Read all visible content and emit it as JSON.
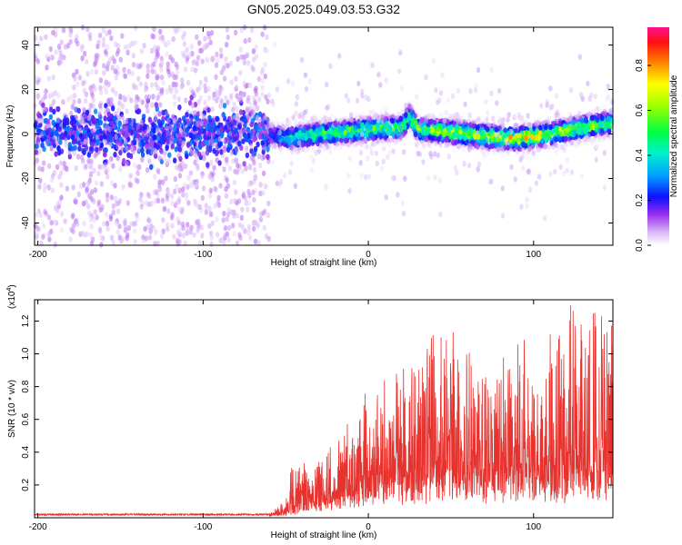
{
  "title": "GN05.2025.049.03.53.G32",
  "chart_data": [
    {
      "type": "heatmap",
      "xlabel": "Height of straight line (km)",
      "ylabel": "Frequency (Hz)",
      "xlim": [
        -202,
        148
      ],
      "ylim": [
        -50,
        48
      ],
      "x_ticks": [
        -200,
        -100,
        0,
        100
      ],
      "y_ticks": [
        -40,
        -20,
        0,
        20,
        40
      ],
      "grid": false,
      "colorbar": {
        "label": "Normalized spectral amplitude",
        "range": [
          0,
          0.97
        ],
        "ticks": [
          0.0,
          0.2,
          0.4,
          0.6,
          0.8
        ]
      },
      "ridge": {
        "x": [
          -200,
          -150,
          -100,
          -60,
          -50,
          -30,
          0,
          20,
          25,
          30,
          50,
          70,
          90,
          110,
          130,
          148
        ],
        "frequency": [
          1,
          0,
          0,
          0,
          -2,
          0,
          2,
          3,
          8,
          2,
          1,
          -1,
          -2,
          0,
          3,
          5
        ],
        "peak_amplitude": [
          0.22,
          0.22,
          0.22,
          0.22,
          0.45,
          0.55,
          0.6,
          0.6,
          0.55,
          0.62,
          0.65,
          0.7,
          0.78,
          0.7,
          0.62,
          0.55
        ]
      }
    },
    {
      "type": "line",
      "xlabel": "Height of straight line (km)",
      "ylabel": "SNR (10 * v/v)",
      "y_scale_label": "(x10",
      "y_scale_exponent": "4",
      "y_scale_suffix": ")",
      "xlim": [
        -202,
        148
      ],
      "ylim": [
        0,
        1.33
      ],
      "x_ticks": [
        -200,
        -100,
        0,
        100
      ],
      "y_ticks": [
        0.2,
        0.4,
        0.6,
        0.8,
        1.0,
        1.2
      ],
      "color": "#e8322e",
      "series": [
        {
          "x": [
            -200,
            -150,
            -100,
            -60,
            -48,
            -46,
            -42,
            -38,
            -35,
            -30,
            -25,
            -20,
            -15,
            -10,
            -5,
            0,
            10,
            20,
            40,
            60,
            80,
            100,
            120,
            130,
            140,
            148
          ],
          "y_envelope": [
            0.03,
            0.03,
            0.03,
            0.03,
            0.15,
            0.55,
            0.33,
            0.42,
            0.3,
            0.38,
            0.48,
            0.5,
            0.55,
            0.58,
            0.7,
            0.88,
            0.92,
            0.98,
            1.22,
            1.0,
            1.12,
            1.08,
            1.26,
            1.33,
            1.22,
            1.2
          ],
          "y_base": [
            0.02,
            0.02,
            0.02,
            0.02,
            0.04,
            0.06,
            0.07,
            0.08,
            0.09,
            0.1,
            0.12,
            0.14,
            0.16,
            0.18,
            0.2,
            0.22,
            0.25,
            0.25,
            0.27,
            0.27,
            0.28,
            0.28,
            0.28,
            0.28,
            0.28,
            0.28
          ]
        }
      ]
    }
  ]
}
